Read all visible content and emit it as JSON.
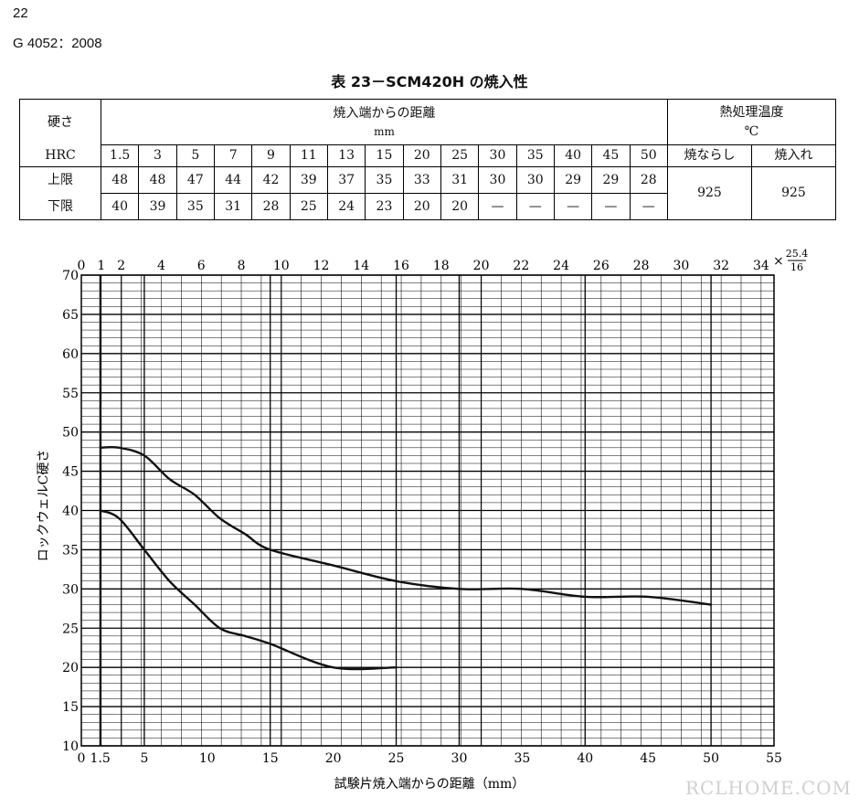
{
  "header": {
    "page_number": "22",
    "doc_id": "G 4052：2008"
  },
  "table": {
    "title": "表 23－SCM420H の焼入性",
    "label_hardness": "硬さ",
    "label_hrc": "HRC",
    "label_distance": "焼入端からの距離",
    "label_mm": "mm",
    "label_heat": "熱処理温度",
    "label_celsius": "℃",
    "label_normalize": "焼ならし",
    "label_quench": "焼入れ",
    "label_upper": "上限",
    "label_lower": "下限",
    "distances": [
      "1.5",
      "3",
      "5",
      "7",
      "9",
      "11",
      "13",
      "15",
      "20",
      "25",
      "30",
      "35",
      "40",
      "45",
      "50"
    ],
    "upper": [
      "48",
      "48",
      "47",
      "44",
      "42",
      "39",
      "37",
      "35",
      "33",
      "31",
      "30",
      "30",
      "29",
      "29",
      "28"
    ],
    "lower": [
      "40",
      "39",
      "35",
      "31",
      "28",
      "25",
      "24",
      "23",
      "20",
      "20",
      "—",
      "—",
      "—",
      "—",
      "—"
    ],
    "normalize_temp": "925",
    "quench_temp": "925"
  },
  "chart_data": {
    "type": "line",
    "ylabel": "ロックウェルC硬さ",
    "xlabel": "試験片焼入端からの距離（mm）",
    "xlim": [
      0,
      55
    ],
    "ylim": [
      10,
      70
    ],
    "grid": true,
    "x_ticks": [
      "0",
      "1.5",
      "5",
      "10",
      "15",
      "20",
      "25",
      "30",
      "35",
      "40",
      "45",
      "50",
      "55"
    ],
    "y_ticks": [
      "10",
      "15",
      "20",
      "25",
      "30",
      "35",
      "40",
      "45",
      "50",
      "55",
      "60",
      "65",
      "70"
    ],
    "top_ticks": [
      "0",
      "1",
      "2",
      "4",
      "6",
      "8",
      "10",
      "12",
      "14",
      "16",
      "18",
      "20",
      "22",
      "24",
      "26",
      "28",
      "30",
      "32",
      "34"
    ],
    "top_unit_prefix": "×",
    "top_unit_num": "25.4",
    "top_unit_den": "16",
    "series": [
      {
        "x": [
          1.5,
          3,
          5,
          7,
          9,
          11,
          13,
          15,
          20,
          25,
          30,
          35,
          40,
          45,
          50
        ],
        "values": [
          48,
          48,
          47,
          44,
          42,
          39,
          37,
          35,
          33,
          31,
          30,
          30,
          29,
          29,
          28
        ]
      },
      {
        "x": [
          1.5,
          3,
          5,
          7,
          9,
          11,
          13,
          15,
          20,
          25
        ],
        "values": [
          40,
          39,
          35,
          31,
          28,
          25,
          24,
          23,
          20,
          20
        ]
      }
    ]
  },
  "watermark": "RCLHOME.COM"
}
